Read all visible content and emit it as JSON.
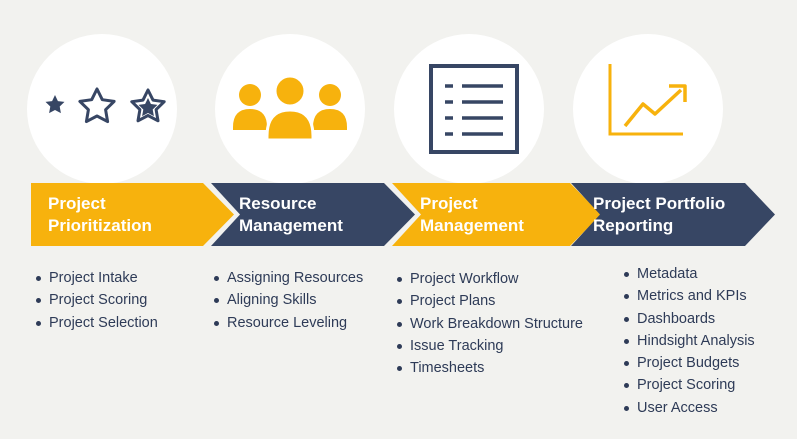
{
  "colors": {
    "background": "#f2f2ef",
    "yellow": "#f7b20d",
    "navy": "#374664",
    "text": "#2e3b57"
  },
  "stages": [
    {
      "title_lines": [
        "Project",
        "Prioritization"
      ],
      "icon": "stars-icon",
      "items": [
        "Project Intake",
        "Project Scoring",
        "Project Selection"
      ]
    },
    {
      "title_lines": [
        "Resource",
        "Management"
      ],
      "icon": "people-icon",
      "items": [
        "Assigning Resources",
        "Aligning Skills",
        "Resource Leveling"
      ]
    },
    {
      "title_lines": [
        "Project",
        "Management"
      ],
      "icon": "checklist-icon",
      "items": [
        "Project Workflow",
        "Project Plans",
        "Work Breakdown Structure",
        "Issue Tracking",
        "Timesheets"
      ]
    },
    {
      "title_lines": [
        "Project Portfolio",
        "Reporting"
      ],
      "icon": "trend-chart-icon",
      "items": [
        "Metadata",
        "Metrics and KPIs",
        "Dashboards",
        "Hindsight Analysis",
        "Project Budgets",
        "Project Scoring",
        "User Access"
      ]
    }
  ]
}
